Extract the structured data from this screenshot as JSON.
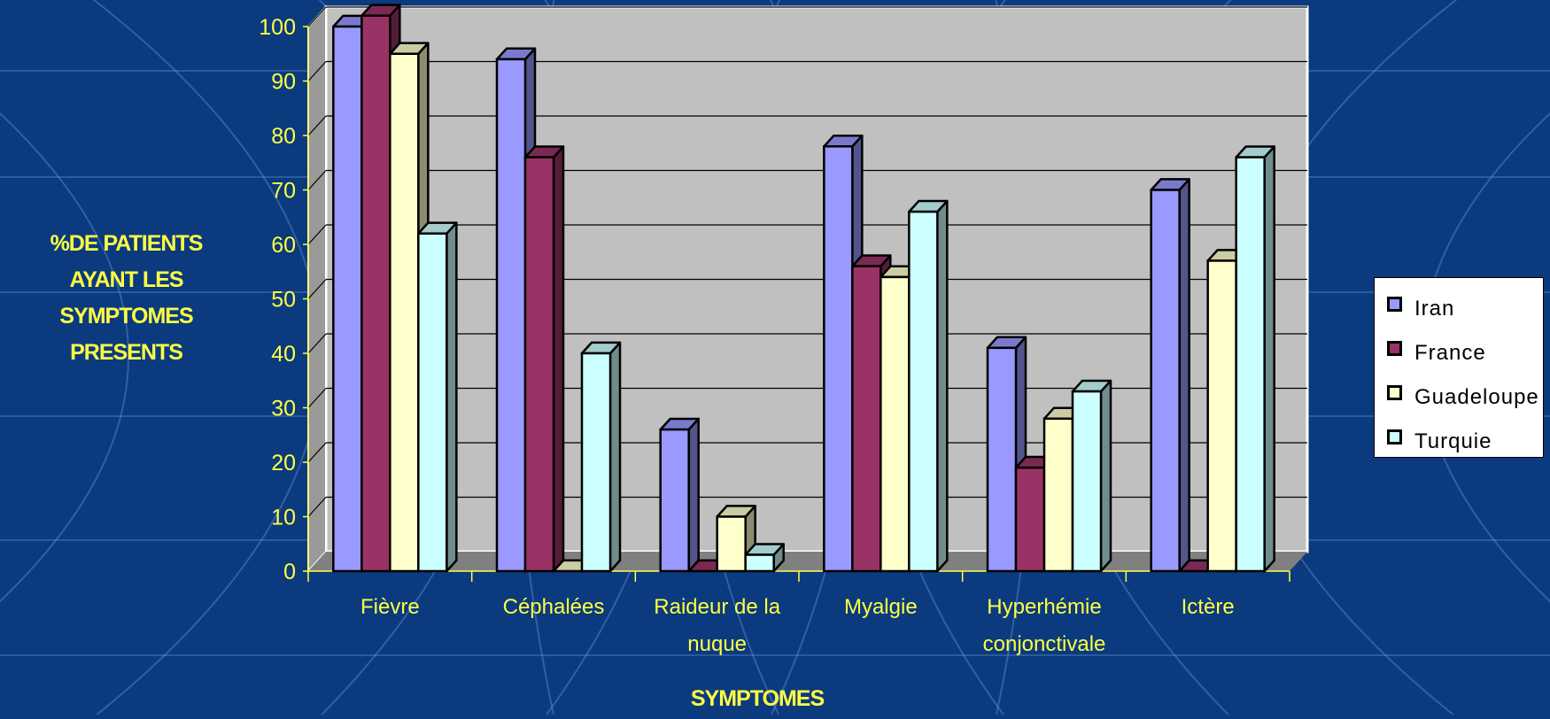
{
  "chart_data": {
    "type": "bar",
    "xlabel": "SYMPTOMES",
    "ylabel_lines": [
      "%DE PATIENTS",
      "AYANT LES",
      "SYMPTOMES",
      "PRESENTS"
    ],
    "ylim": [
      0,
      100
    ],
    "yticks": [
      "0",
      "10",
      "20",
      "30",
      "40",
      "50",
      "60",
      "70",
      "80",
      "90",
      "100"
    ],
    "categories": [
      [
        "Fièvre"
      ],
      [
        "Céphalées"
      ],
      [
        "Raideur de la",
        "nuque"
      ],
      [
        "Myalgie"
      ],
      [
        "Hyperhémie",
        "conjonctivale"
      ],
      [
        "Ictère"
      ]
    ],
    "series": [
      {
        "name": "Iran",
        "color": "#9999ff",
        "values": [
          100,
          94,
          26,
          78,
          41,
          70
        ]
      },
      {
        "name": "France",
        "color": "#993366",
        "values": [
          102,
          76,
          0,
          56,
          19,
          0
        ]
      },
      {
        "name": "Guadeloupe",
        "color": "#ffffcc",
        "values": [
          95,
          0,
          10,
          54,
          28,
          57
        ]
      },
      {
        "name": "Turquie",
        "color": "#ccffff",
        "values": [
          62,
          40,
          3,
          66,
          33,
          76
        ]
      }
    ],
    "legend_position": "right",
    "grid": true,
    "wall_color": "#c0c0c0",
    "floor_color": "#808080"
  }
}
